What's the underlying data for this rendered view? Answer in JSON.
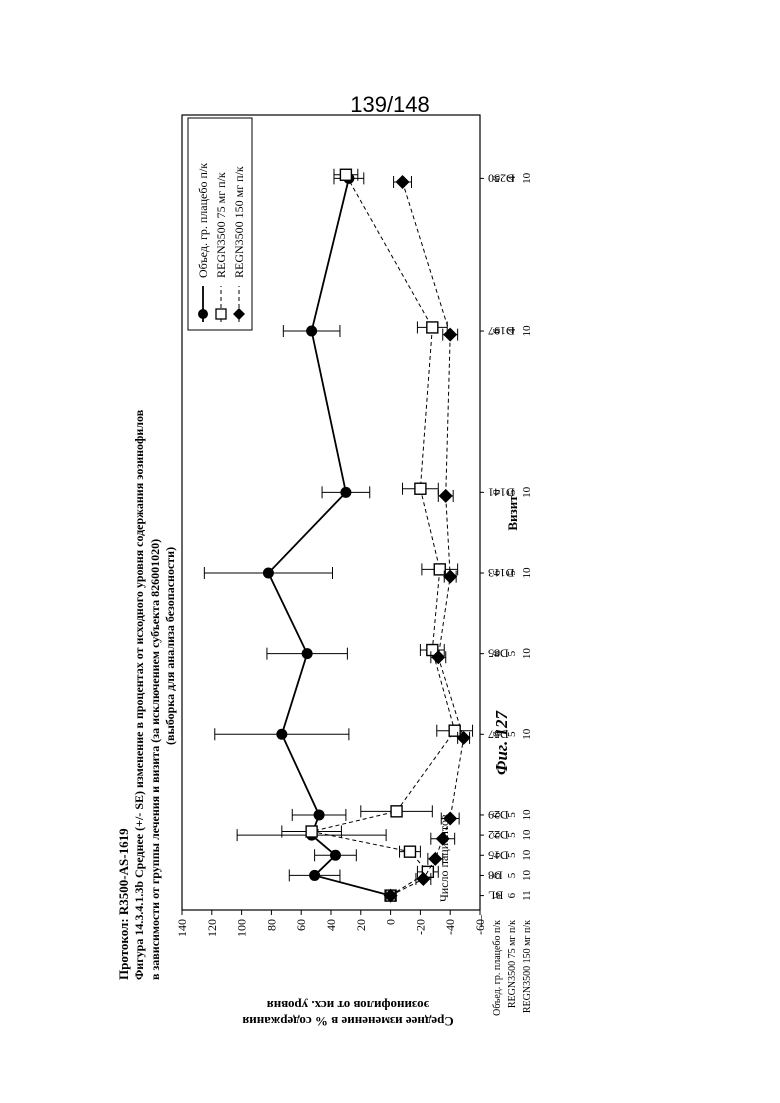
{
  "page_number": "139/148",
  "protocol": "Протокол: R3500-AS-1619",
  "figure_title": [
    "Фигура 14.3.4.1.3b Среднее (+/- SE) изменение в процентах от исходного уровня содержания эозинофилов в зависимости от",
    "группы лечения и визита (за исключением субъекта 826001020) (выборка для анализа безопасности)"
  ],
  "figure_caption": "Фиг. 127",
  "chart_data": {
    "type": "line",
    "ylabel": "Среднее изменение в % содержания эозинофилов от исх. уровня",
    "xlabel": "Визит",
    "ylim": [
      -60,
      140
    ],
    "yticks": [
      140,
      120,
      100,
      80,
      60,
      40,
      20,
      0,
      -20,
      -40,
      -60
    ],
    "x": [
      "BL",
      "D8",
      "D15",
      "D22",
      "D29",
      "D57",
      "D85",
      "D113",
      "D141",
      "D197",
      "D250"
    ],
    "x_days": [
      1,
      8,
      15,
      22,
      29,
      57,
      85,
      113,
      141,
      197,
      250
    ],
    "legend_position": "top-right",
    "series": [
      {
        "name": "Объед. гр. плацебо п/к",
        "marker": "circle",
        "line": "solid",
        "color": "#000000",
        "values": [
          0,
          51,
          37,
          53,
          48,
          73,
          56,
          82,
          30,
          53,
          28
        ],
        "se": [
          3,
          17,
          14,
          50,
          18,
          45,
          27,
          43,
          16,
          19,
          10
        ]
      },
      {
        "name": "REGN3500 75 мг п/к",
        "marker": "square",
        "line": "dashed",
        "color": "#000000",
        "values": [
          0,
          -25,
          -13,
          53,
          -4,
          -43,
          -28,
          -33,
          -20,
          -28,
          30
        ],
        "se": [
          3,
          7,
          7,
          20,
          24,
          12,
          8,
          12,
          12,
          10,
          8
        ]
      },
      {
        "name": "REGN3500 150 мг п/к",
        "marker": "diamond",
        "line": "dashed",
        "color": "#000000",
        "values": [
          0,
          -22,
          -30,
          -35,
          -40,
          -49,
          -32,
          -40,
          -37,
          -40,
          -8
        ],
        "se": [
          3,
          5,
          5,
          8,
          6,
          4,
          5,
          4,
          5,
          5,
          6
        ]
      }
    ],
    "patient_counts_header": "Число пациентов",
    "patient_counts": [
      {
        "label": "Объед. гр. плацебо п/к",
        "values": [
          "5",
          "5",
          "6",
          "6",
          "6",
          "6",
          "6",
          "6",
          "6",
          "6",
          "6"
        ]
      },
      {
        "label": "REGN3500 75 мг п/к",
        "values": [
          "6",
          "5",
          "5",
          "5",
          "5",
          "5",
          "5",
          "5",
          "5",
          "4",
          "4"
        ]
      },
      {
        "label": "REGN3500 150 мг п/к",
        "values": [
          "11",
          "10",
          "10",
          "10",
          "10",
          "10",
          "10",
          "10",
          "10",
          "10",
          "10"
        ]
      }
    ],
    "count_row_marker": "—"
  }
}
